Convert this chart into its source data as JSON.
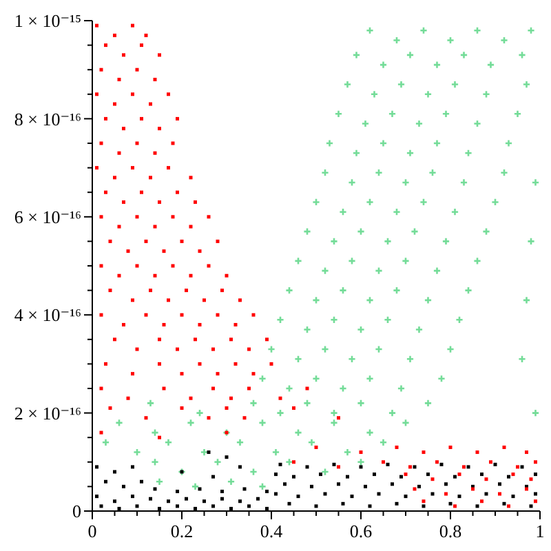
{
  "chart_data": {
    "type": "scatter",
    "xlim": [
      0,
      1
    ],
    "ylim": [
      0,
      1e-15
    ],
    "xticks": [
      0,
      {
        "value": 0.05,
        "label": null
      },
      {
        "value": 0.1,
        "label": null
      },
      {
        "value": 0.15,
        "label": null
      },
      0.2,
      {
        "value": 0.25,
        "label": null
      },
      {
        "value": 0.3,
        "label": null
      },
      {
        "value": 0.35,
        "label": null
      },
      0.4,
      {
        "value": 0.45,
        "label": null
      },
      {
        "value": 0.5,
        "label": null
      },
      {
        "value": 0.55,
        "label": null
      },
      0.6,
      {
        "value": 0.65,
        "label": null
      },
      {
        "value": 0.7,
        "label": null
      },
      {
        "value": 0.75,
        "label": null
      },
      0.8,
      {
        "value": 0.85,
        "label": null
      },
      {
        "value": 0.9,
        "label": null
      },
      {
        "value": 0.95,
        "label": null
      },
      1
    ],
    "yticks": [
      0,
      {
        "value": 5e-17,
        "label": null
      },
      {
        "value": 1e-16,
        "label": null
      },
      {
        "value": 1.5e-16,
        "label": null
      },
      {
        "value": 2e-16,
        "label": "2 × 10⁻¹⁶"
      },
      {
        "value": 2.5e-16,
        "label": null
      },
      {
        "value": 3e-16,
        "label": null
      },
      {
        "value": 3.5e-16,
        "label": null
      },
      {
        "value": 4e-16,
        "label": "4 × 10⁻¹⁶"
      },
      {
        "value": 4.5e-16,
        "label": null
      },
      {
        "value": 5e-16,
        "label": null
      },
      {
        "value": 5.5e-16,
        "label": null
      },
      {
        "value": 6e-16,
        "label": "6 × 10⁻¹⁶"
      },
      {
        "value": 6.5e-16,
        "label": null
      },
      {
        "value": 7e-16,
        "label": null
      },
      {
        "value": 7.5e-16,
        "label": null
      },
      {
        "value": 8e-16,
        "label": "8 × 10⁻¹⁶"
      },
      {
        "value": 8.5e-16,
        "label": null
      },
      {
        "value": 9e-16,
        "label": null
      },
      {
        "value": 9.5e-16,
        "label": null
      },
      {
        "value": 1e-15,
        "label": "1 × 10⁻¹⁵"
      }
    ],
    "series": [
      {
        "color": "#74dc98",
        "marker": "cross",
        "x": [
          0.62,
          0.68,
          0.74,
          0.8,
          0.86,
          0.92,
          0.98,
          0.59,
          0.65,
          0.71,
          0.77,
          0.83,
          0.89,
          0.96,
          0.57,
          0.63,
          0.69,
          0.75,
          0.81,
          0.88,
          0.97,
          0.55,
          0.61,
          0.67,
          0.73,
          0.79,
          0.86,
          0.95,
          0.53,
          0.59,
          0.65,
          0.71,
          0.77,
          0.84,
          0.93,
          0.52,
          0.58,
          0.64,
          0.7,
          0.76,
          0.83,
          0.92,
          0.99,
          0.5,
          0.56,
          0.62,
          0.68,
          0.74,
          0.81,
          0.9,
          0.48,
          0.54,
          0.6,
          0.66,
          0.72,
          0.79,
          0.88,
          0.98,
          0.46,
          0.52,
          0.58,
          0.64,
          0.7,
          0.77,
          0.86,
          0.44,
          0.5,
          0.56,
          0.62,
          0.68,
          0.75,
          0.84,
          0.97,
          0.42,
          0.48,
          0.54,
          0.6,
          0.66,
          0.73,
          0.82,
          0.4,
          0.46,
          0.52,
          0.58,
          0.64,
          0.71,
          0.8,
          0.96,
          0.38,
          0.44,
          0.5,
          0.56,
          0.62,
          0.69,
          0.78,
          0.13,
          0.24,
          0.36,
          0.42,
          0.48,
          0.54,
          0.6,
          0.67,
          0.75,
          0.99,
          0.06,
          0.14,
          0.22,
          0.3,
          0.38,
          0.46,
          0.54,
          0.62,
          0.7,
          0.03,
          0.1,
          0.17,
          0.25,
          0.33,
          0.41,
          0.49,
          0.57,
          0.65,
          0.14,
          0.2,
          0.28,
          0.36,
          0.44,
          0.52,
          0.6,
          0.15,
          0.23,
          0.31,
          0.38
        ],
        "values": [
          9.8e-16,
          9.6e-16,
          9.8e-16,
          9.6e-16,
          9.8e-16,
          9.6e-16,
          9.8e-16,
          9.3e-16,
          9.1e-16,
          9.3e-16,
          9.1e-16,
          9.3e-16,
          9.1e-16,
          9.3e-16,
          8.7e-16,
          8.5e-16,
          8.7e-16,
          8.5e-16,
          8.7e-16,
          8.5e-16,
          8.7e-16,
          8.1e-16,
          7.9e-16,
          8.1e-16,
          7.9e-16,
          8.1e-16,
          7.9e-16,
          8.1e-16,
          7.5e-16,
          7.3e-16,
          7.5e-16,
          7.3e-16,
          7.5e-16,
          7.3e-16,
          7.5e-16,
          6.9e-16,
          6.7e-16,
          6.9e-16,
          6.7e-16,
          6.9e-16,
          6.7e-16,
          6.9e-16,
          6.7e-16,
          6.3e-16,
          6.1e-16,
          6.3e-16,
          6.1e-16,
          6.3e-16,
          6.1e-16,
          6.3e-16,
          5.7e-16,
          5.5e-16,
          5.7e-16,
          5.5e-16,
          5.7e-16,
          5.5e-16,
          5.7e-16,
          5.5e-16,
          5.1e-16,
          4.9e-16,
          5.1e-16,
          4.9e-16,
          5.1e-16,
          4.9e-16,
          5.1e-16,
          4.5e-16,
          4.3e-16,
          4.5e-16,
          4.3e-16,
          4.5e-16,
          4.3e-16,
          4.5e-16,
          4.3e-16,
          3.9e-16,
          3.7e-16,
          3.9e-16,
          3.7e-16,
          3.9e-16,
          3.7e-16,
          3.9e-16,
          3.3e-16,
          3.1e-16,
          3.3e-16,
          3.1e-16,
          3.3e-16,
          3.1e-16,
          3.3e-16,
          3.1e-16,
          2.7e-16,
          2.5e-16,
          2.7e-16,
          2.5e-16,
          2.7e-16,
          2.5e-16,
          2.7e-16,
          2.2e-16,
          2e-16,
          2.2e-16,
          2e-16,
          2.2e-16,
          2e-16,
          2.2e-16,
          2e-16,
          2.2e-16,
          2e-16,
          1.8e-16,
          1.6e-16,
          1.8e-16,
          1.6e-16,
          1.8e-16,
          1.6e-16,
          1.8e-16,
          1.6e-16,
          1.8e-16,
          1.4e-16,
          1.2e-16,
          1.4e-16,
          1.2e-16,
          1.4e-16,
          1.2e-16,
          1.4e-16,
          1.2e-16,
          1.4e-16,
          1e-16,
          8e-17,
          1e-16,
          8e-17,
          1e-16,
          8e-17,
          1e-16,
          6e-17,
          5e-17,
          6e-17,
          5e-17
        ]
      },
      {
        "color": "#000000",
        "marker": "square",
        "x": [
          0.01,
          0.05,
          0.09,
          0.03,
          0.07,
          0.11,
          0.01,
          0.05,
          0.09,
          0.14,
          0.19,
          0.24,
          0.29,
          0.34,
          0.39,
          0.13,
          0.17,
          0.21,
          0.25,
          0.29,
          0.33,
          0.37,
          0.02,
          0.06,
          0.1,
          0.15,
          0.19,
          0.23,
          0.27,
          0.31,
          0.35,
          0.39,
          0.2,
          0.27,
          0.33,
          0.26,
          0.3,
          0.42,
          0.48,
          0.54,
          0.6,
          0.66,
          0.72,
          0.78,
          0.84,
          0.9,
          0.96,
          0.41,
          0.45,
          0.51,
          0.57,
          0.63,
          0.69,
          0.75,
          0.81,
          0.87,
          0.93,
          0.99,
          0.43,
          0.49,
          0.55,
          0.61,
          0.67,
          0.73,
          0.79,
          0.85,
          0.91,
          0.97,
          0.41,
          0.46,
          0.52,
          0.58,
          0.64,
          0.7,
          0.76,
          0.82,
          0.88,
          0.94,
          0.99,
          0.44,
          0.5,
          0.56,
          0.62,
          0.68,
          0.74,
          0.8,
          0.86,
          0.92,
          0.98
        ],
        "values": [
          9e-17,
          8e-17,
          9e-17,
          6e-17,
          5e-17,
          6e-17,
          3e-17,
          2e-17,
          3e-17,
          4.5e-17,
          4e-17,
          4.5e-17,
          4e-17,
          4.5e-17,
          4e-17,
          2.5e-17,
          2e-17,
          2.5e-17,
          2e-17,
          2.5e-17,
          2e-17,
          2.5e-17,
          1e-17,
          5e-18,
          1e-17,
          5e-18,
          1e-17,
          5e-18,
          1e-17,
          5e-18,
          1e-17,
          5e-18,
          8e-17,
          7e-17,
          9e-17,
          1.2e-16,
          1.1e-16,
          9.5e-17,
          9e-17,
          9.5e-17,
          9e-17,
          9.5e-17,
          9e-17,
          9.5e-17,
          9e-17,
          9.5e-17,
          9e-17,
          7.5e-17,
          7e-17,
          7.5e-17,
          7e-17,
          7.5e-17,
          7e-17,
          7.5e-17,
          7e-17,
          7.5e-17,
          7e-17,
          7.5e-17,
          5.5e-17,
          5e-17,
          5.5e-17,
          5e-17,
          5.5e-17,
          5e-17,
          5.5e-17,
          5e-17,
          5.5e-17,
          5e-17,
          3.5e-17,
          3e-17,
          3.5e-17,
          3e-17,
          3.5e-17,
          3e-17,
          3.5e-17,
          3e-17,
          3.5e-17,
          3e-17,
          3.5e-17,
          1.5e-17,
          1e-17,
          1.5e-17,
          1e-17,
          1.5e-17,
          1e-17,
          1.5e-17,
          1e-17,
          1.5e-17,
          1e-17
        ]
      },
      {
        "color": "#ff0000",
        "marker": "square",
        "x": [
          0.01,
          0.05,
          0.09,
          0.12,
          0.03,
          0.07,
          0.11,
          0.15,
          0.02,
          0.06,
          0.1,
          0.14,
          0.01,
          0.05,
          0.09,
          0.13,
          0.17,
          0.03,
          0.07,
          0.11,
          0.15,
          0.19,
          0.02,
          0.06,
          0.1,
          0.14,
          0.18,
          0.01,
          0.05,
          0.09,
          0.13,
          0.17,
          0.22,
          0.03,
          0.07,
          0.11,
          0.15,
          0.19,
          0.23,
          0.02,
          0.06,
          0.1,
          0.14,
          0.18,
          0.22,
          0.26,
          0.04,
          0.08,
          0.12,
          0.16,
          0.2,
          0.24,
          0.28,
          0.02,
          0.06,
          0.1,
          0.14,
          0.18,
          0.22,
          0.26,
          0.3,
          0.04,
          0.09,
          0.13,
          0.17,
          0.21,
          0.25,
          0.29,
          0.33,
          0.02,
          0.07,
          0.12,
          0.16,
          0.2,
          0.24,
          0.28,
          0.32,
          0.36,
          0.05,
          0.1,
          0.15,
          0.19,
          0.23,
          0.27,
          0.31,
          0.35,
          0.39,
          0.03,
          0.09,
          0.15,
          0.2,
          0.24,
          0.28,
          0.32,
          0.36,
          0.4,
          0.02,
          0.08,
          0.16,
          0.22,
          0.27,
          0.31,
          0.35,
          0.42,
          0.48,
          0.04,
          0.12,
          0.2,
          0.26,
          0.3,
          0.34,
          0.45,
          0.55,
          0.5,
          0.6,
          0.68,
          0.74,
          0.8,
          0.86,
          0.92,
          0.97,
          0.45,
          0.55,
          0.65,
          0.71,
          0.77,
          0.83,
          0.89,
          0.95,
          0.99,
          0.7,
          0.76,
          0.82,
          0.88,
          0.94,
          0.98,
          0.72,
          0.79,
          0.85,
          0.91,
          0.97,
          0.74,
          0.81,
          0.87,
          0.93,
          0.99,
          0.02,
          0.15,
          0.3
        ],
        "values": [
          9.9e-16,
          9.7e-16,
          9.9e-16,
          9.7e-16,
          9.5e-16,
          9.3e-16,
          9.5e-16,
          9.3e-16,
          9e-16,
          8.8e-16,
          9e-16,
          8.8e-16,
          8.5e-16,
          8.3e-16,
          8.5e-16,
          8.3e-16,
          8.5e-16,
          8e-16,
          7.8e-16,
          8e-16,
          7.8e-16,
          8e-16,
          7.5e-16,
          7.3e-16,
          7.5e-16,
          7.3e-16,
          7.5e-16,
          7e-16,
          6.8e-16,
          7e-16,
          6.8e-16,
          7e-16,
          6.8e-16,
          6.5e-16,
          6.3e-16,
          6.5e-16,
          6.3e-16,
          6.5e-16,
          6.3e-16,
          6e-16,
          5.8e-16,
          6e-16,
          5.8e-16,
          6e-16,
          5.8e-16,
          6e-16,
          5.5e-16,
          5.3e-16,
          5.5e-16,
          5.3e-16,
          5.5e-16,
          5.3e-16,
          5.5e-16,
          5e-16,
          4.8e-16,
          5e-16,
          4.8e-16,
          5e-16,
          4.8e-16,
          5e-16,
          4.8e-16,
          4.5e-16,
          4.3e-16,
          4.5e-16,
          4.3e-16,
          4.5e-16,
          4.3e-16,
          4.5e-16,
          4.3e-16,
          4e-16,
          3.8e-16,
          4e-16,
          3.8e-16,
          4e-16,
          3.8e-16,
          4e-16,
          3.8e-16,
          4e-16,
          3.5e-16,
          3.3e-16,
          3.5e-16,
          3.3e-16,
          3.5e-16,
          3.3e-16,
          3.5e-16,
          3.3e-16,
          3.5e-16,
          3e-16,
          2.8e-16,
          3e-16,
          2.8e-16,
          3e-16,
          2.8e-16,
          3e-16,
          2.8e-16,
          3e-16,
          2.5e-16,
          2.3e-16,
          2.5e-16,
          2.3e-16,
          2.5e-16,
          2.3e-16,
          2.5e-16,
          2.3e-16,
          2.5e-16,
          2.1e-16,
          1.9e-16,
          2.1e-16,
          1.9e-16,
          2.1e-16,
          1.9e-16,
          2.1e-16,
          1.9e-16,
          1.3e-16,
          1.2e-16,
          1.3e-16,
          1.2e-16,
          1.3e-16,
          1.2e-16,
          1.3e-16,
          1.2e-16,
          1e-16,
          9e-17,
          1e-16,
          9e-17,
          1e-16,
          9e-17,
          1e-16,
          9e-17,
          1e-16,
          7.5e-17,
          6.5e-17,
          7.5e-17,
          6.5e-17,
          7.5e-17,
          6.5e-17,
          4.5e-17,
          3.5e-17,
          4.5e-17,
          3.5e-17,
          4.5e-17,
          2e-17,
          1e-17,
          2e-17,
          1e-17,
          2e-17,
          1.6e-16,
          1.5e-16,
          1.6e-16
        ]
      }
    ]
  }
}
